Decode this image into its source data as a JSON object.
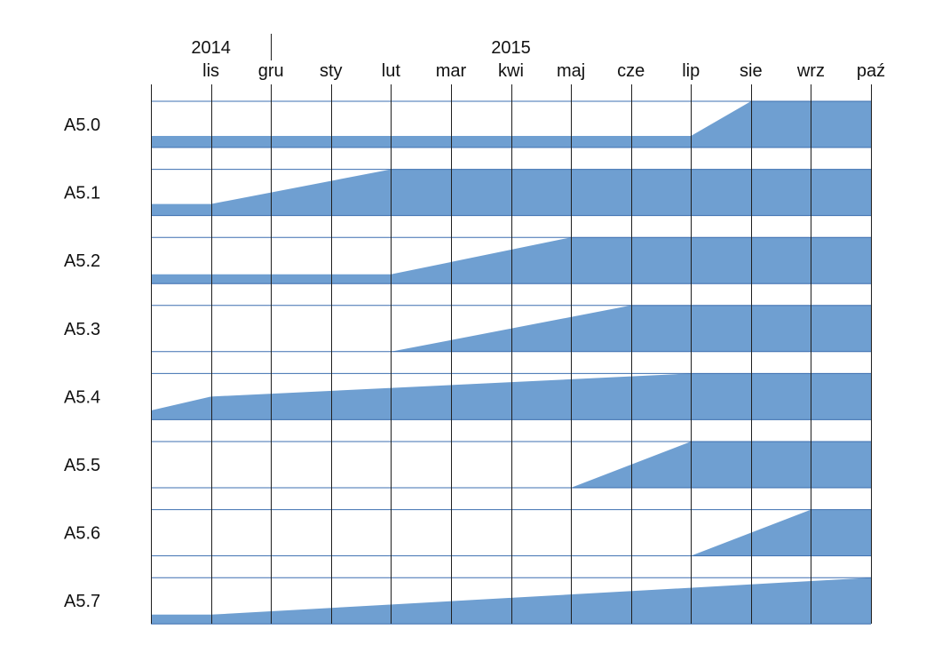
{
  "chart_data": {
    "type": "area",
    "years": [
      {
        "label": "2014",
        "month_index": 1
      },
      {
        "label": "2015",
        "month_index": 6
      }
    ],
    "months": [
      "lis",
      "gru",
      "sty",
      "lut",
      "mar",
      "kwi",
      "maj",
      "cze",
      "lip",
      "sie",
      "wrz",
      "paź"
    ],
    "x_range_months": [
      0.0,
      12.0
    ],
    "colors": {
      "fill": "#6f9fd1",
      "grid": "#1f1f1f",
      "row_line": "#3d6fb0"
    },
    "series": [
      {
        "label": "A5.0",
        "points": [
          [
            0.0,
            0.25
          ],
          [
            9.0,
            0.25
          ],
          [
            10.0,
            1.0
          ],
          [
            12.0,
            1.0
          ]
        ]
      },
      {
        "label": "A5.1",
        "points": [
          [
            0.0,
            0.25
          ],
          [
            1.0,
            0.25
          ],
          [
            4.0,
            1.0
          ],
          [
            12.0,
            1.0
          ]
        ]
      },
      {
        "label": "A5.2",
        "points": [
          [
            0.0,
            0.2
          ],
          [
            4.0,
            0.2
          ],
          [
            7.0,
            1.0
          ],
          [
            12.0,
            1.0
          ]
        ]
      },
      {
        "label": "A5.3",
        "points": [
          [
            4.0,
            0.0
          ],
          [
            8.0,
            1.0
          ],
          [
            12.0,
            1.0
          ]
        ]
      },
      {
        "label": "A5.4",
        "points": [
          [
            0.0,
            0.2
          ],
          [
            1.0,
            0.5
          ],
          [
            9.0,
            1.0
          ],
          [
            12.0,
            1.0
          ]
        ]
      },
      {
        "label": "A5.5",
        "points": [
          [
            7.0,
            0.0
          ],
          [
            9.0,
            1.0
          ],
          [
            12.0,
            1.0
          ]
        ]
      },
      {
        "label": "A5.6",
        "points": [
          [
            9.0,
            0.0
          ],
          [
            11.0,
            1.0
          ],
          [
            12.0,
            1.0
          ]
        ]
      },
      {
        "label": "A5.7",
        "points": [
          [
            0.0,
            0.2
          ],
          [
            1.0,
            0.2
          ],
          [
            12.0,
            1.0
          ]
        ]
      }
    ]
  }
}
